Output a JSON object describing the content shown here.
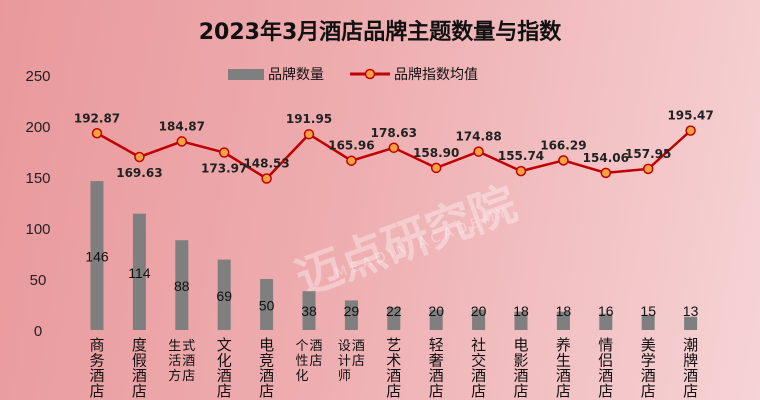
{
  "chart_data": {
    "type": "bar+line",
    "title": "2023年3月酒店品牌主题数量与指数",
    "categories": [
      "商务酒店",
      "度假酒店",
      "生活方式酒店",
      "文化酒店",
      "电竞酒店",
      "个性化酒店",
      "设计师酒店",
      "艺术酒店",
      "轻奢酒店",
      "社交酒店",
      "电影酒店",
      "养生酒店",
      "情侣酒店",
      "美学酒店",
      "潮牌酒店"
    ],
    "series": [
      {
        "name": "品牌数量",
        "type": "bar",
        "color": "#7f7f7f",
        "values": [
          146,
          114,
          88,
          69,
          50,
          38,
          29,
          22,
          20,
          20,
          18,
          18,
          16,
          15,
          13
        ]
      },
      {
        "name": "品牌指数均值",
        "type": "line",
        "color": "#c00000",
        "marker_color": "#f4a340",
        "values": [
          192.87,
          169.63,
          184.87,
          173.97,
          148.53,
          191.95,
          165.96,
          178.63,
          158.9,
          174.88,
          155.74,
          166.29,
          154.06,
          157.95,
          195.47
        ],
        "labels": [
          "192.87",
          "169.63",
          "184.87",
          "173.97",
          "148.53",
          "191.95",
          "165.96",
          "178.63",
          "158.90",
          "174.88",
          "155.74",
          "166.29",
          "154.06",
          "157.95",
          "195.47"
        ]
      }
    ],
    "yticks": [
      "0",
      "50",
      "100",
      "150",
      "200",
      "250"
    ],
    "ylim": [
      0,
      250
    ],
    "grid": false,
    "legend": "top"
  },
  "watermark": "迈点研究院 MEADIN ACADEMY"
}
